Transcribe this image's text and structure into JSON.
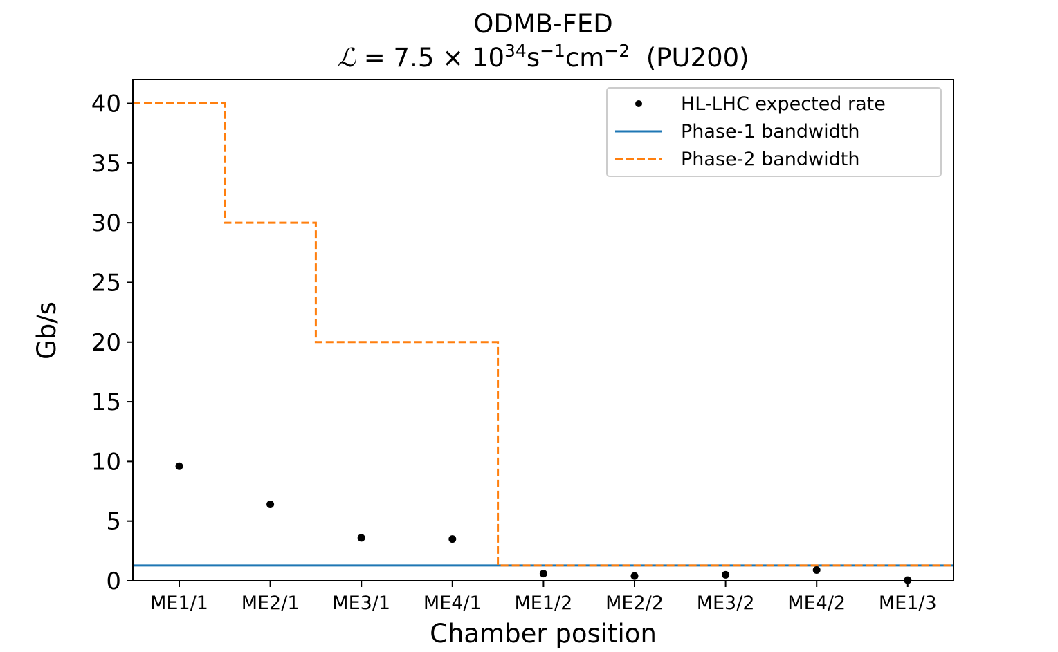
{
  "chart_data": {
    "type": "scatter",
    "title_line1": "ODMB-FED",
    "title_line2_parts": {
      "symbol": "ℒ",
      "equals": " = 7.5 × 10",
      "exp1": "34",
      "s": "s",
      "exp2": "−1",
      "cm": "cm",
      "exp3": "−2",
      "suffix": "  (PU200)"
    },
    "xlabel": "Chamber position",
    "ylabel": "Gb/s",
    "ylim": [
      0,
      42
    ],
    "yticks": [
      0,
      5,
      10,
      15,
      20,
      25,
      30,
      35,
      40
    ],
    "categories": [
      "ME1/1",
      "ME2/1",
      "ME3/1",
      "ME4/1",
      "ME1/2",
      "ME2/2",
      "ME3/2",
      "ME4/2",
      "ME1/3"
    ],
    "series": [
      {
        "name": "HL-LHC expected rate",
        "kind": "points",
        "color": "#000000",
        "values": [
          9.6,
          6.4,
          3.6,
          3.5,
          0.6,
          0.4,
          0.5,
          0.9,
          0.05
        ]
      },
      {
        "name": "Phase-1 bandwidth",
        "kind": "hline",
        "color": "#1f77b4",
        "value": 1.28
      },
      {
        "name": "Phase-2 bandwidth",
        "kind": "step",
        "color": "#ff7f0e",
        "values": [
          40,
          30,
          20,
          20,
          1.28,
          1.28,
          1.28,
          1.28,
          1.28
        ]
      }
    ],
    "legend_position": "upper-right",
    "grid": false
  }
}
